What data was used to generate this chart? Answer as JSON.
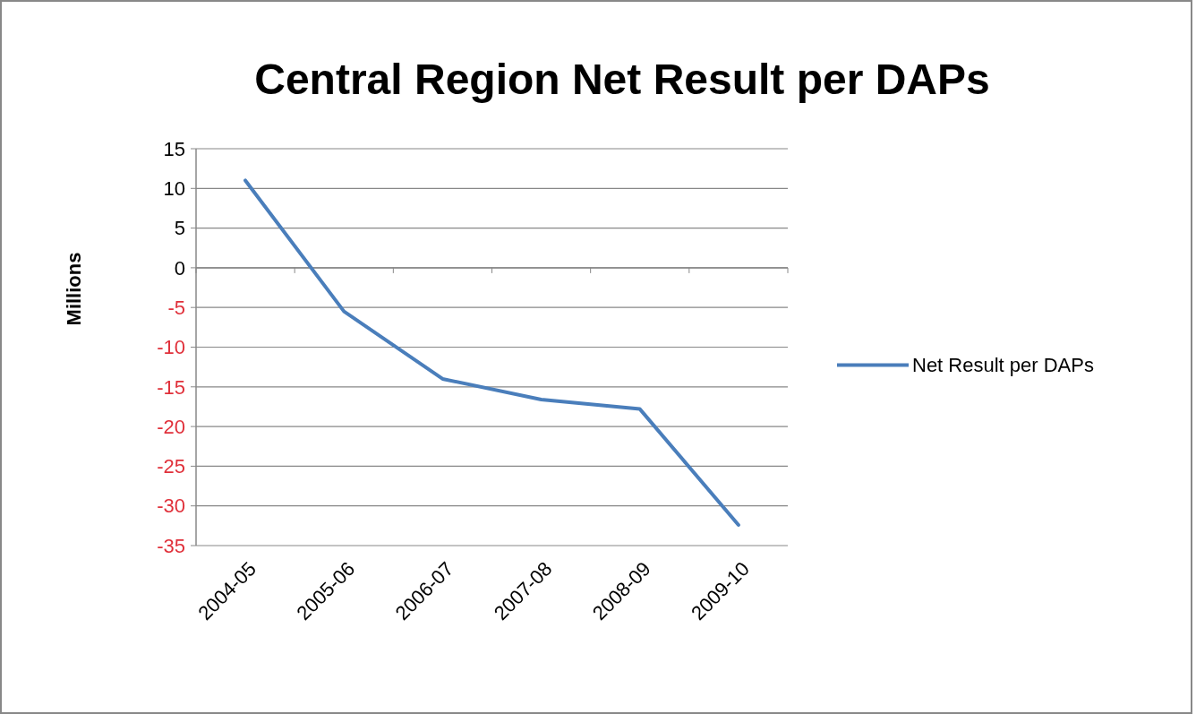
{
  "chart_data": {
    "type": "line",
    "title": "Central Region Net Result per DAPs",
    "ylabel": "Millions",
    "categories": [
      "2004-05",
      "2005-06",
      "2006-07",
      "2007-08",
      "2008-09",
      "2009-10"
    ],
    "series": [
      {
        "name": "Net Result per DAPs",
        "color": "#4a7ebb",
        "values": [
          11,
          -5.5,
          -14,
          -16.6,
          -17.8,
          -32.4
        ]
      }
    ],
    "ylim": [
      -35,
      15
    ],
    "yticks": [
      -35,
      -30,
      -25,
      -20,
      -15,
      -10,
      -5,
      0,
      5,
      10,
      15
    ],
    "grid": "y",
    "legend": "right",
    "marker": "none"
  }
}
